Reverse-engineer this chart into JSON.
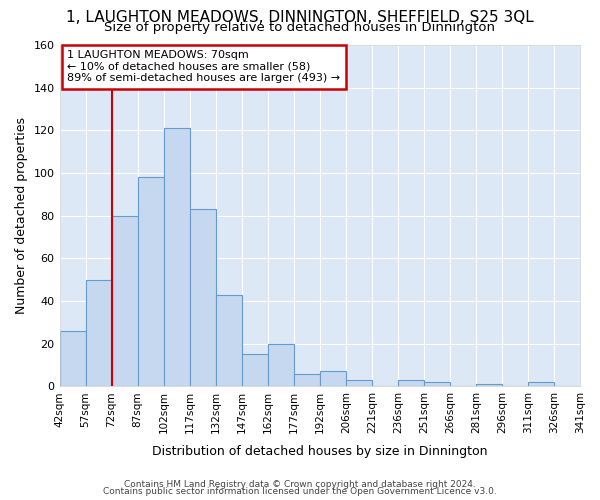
{
  "title": "1, LAUGHTON MEADOWS, DINNINGTON, SHEFFIELD, S25 3QL",
  "subtitle": "Size of property relative to detached houses in Dinnington",
  "xlabel": "Distribution of detached houses by size in Dinnington",
  "ylabel": "Number of detached properties",
  "bar_color": "#c5d8f0",
  "bar_edge_color": "#6699cc",
  "background_color": "#dce8f5",
  "grid_color": "#ffffff",
  "fig_background": "#ffffff",
  "categories": [
    "42sqm",
    "57sqm",
    "72sqm",
    "87sqm",
    "102sqm",
    "117sqm",
    "132sqm",
    "147sqm",
    "162sqm",
    "177sqm",
    "192sqm",
    "206sqm",
    "221sqm",
    "236sqm",
    "251sqm",
    "266sqm",
    "281sqm",
    "296sqm",
    "311sqm",
    "326sqm",
    "341sqm"
  ],
  "values": [
    26,
    50,
    80,
    98,
    121,
    83,
    43,
    15,
    20,
    6,
    7,
    3,
    0,
    3,
    2,
    0,
    1,
    0,
    2,
    0
  ],
  "ylim": [
    0,
    160
  ],
  "yticks": [
    0,
    20,
    40,
    60,
    80,
    100,
    120,
    140,
    160
  ],
  "property_line_x": 72,
  "annotation_line1": "1 LAUGHTON MEADOWS: 70sqm",
  "annotation_line2": "← 10% of detached houses are smaller (58)",
  "annotation_line3": "89% of semi-detached houses are larger (493) →",
  "annotation_box_color": "#ffffff",
  "annotation_box_edge": "#cc0000",
  "red_line_color": "#cc0000",
  "footer1": "Contains HM Land Registry data © Crown copyright and database right 2024.",
  "footer2": "Contains public sector information licensed under the Open Government Licence v3.0."
}
